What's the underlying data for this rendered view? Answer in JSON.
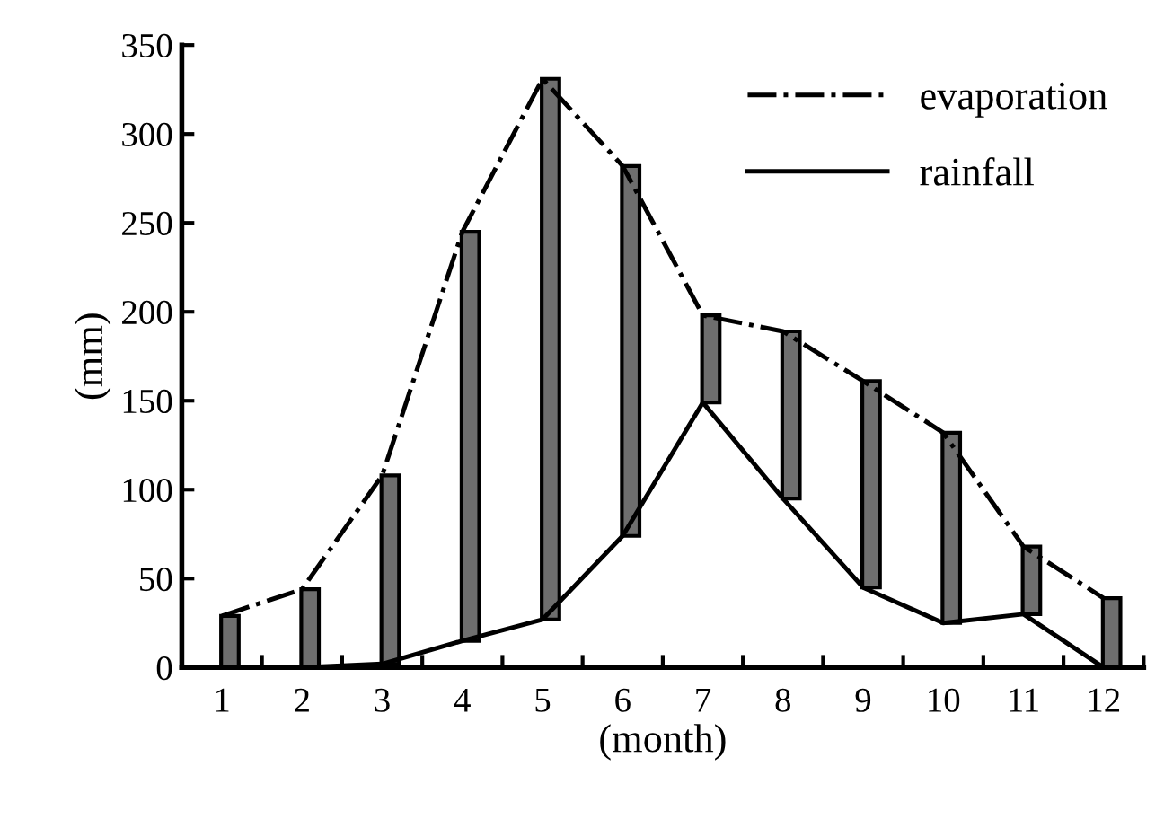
{
  "chart_data": {
    "type": "line",
    "xlabel": "(month)",
    "ylabel": "(mm)",
    "categories": [
      "1",
      "2",
      "3",
      "4",
      "5",
      "6",
      "7",
      "8",
      "9",
      "10",
      "11",
      "12"
    ],
    "series": [
      {
        "type": "bar",
        "color": "#6e6e6e",
        "base": [
          0,
          0,
          2,
          15,
          27,
          74,
          149,
          95,
          45,
          25,
          30,
          0
        ],
        "values": [
          29,
          44,
          106,
          230,
          304,
          208,
          49,
          94,
          116,
          107,
          38,
          39
        ]
      },
      {
        "name": "evaporation",
        "color": "#000000",
        "line_style": "dashdot",
        "values": [
          29,
          44,
          108,
          245,
          331,
          282,
          198,
          189,
          161,
          132,
          68,
          39
        ]
      },
      {
        "name": "rainfall",
        "color": "#000000",
        "line_style": "solid",
        "values": [
          0,
          0,
          2,
          15,
          27,
          74,
          149,
          95,
          45,
          25,
          30,
          0
        ]
      }
    ],
    "ylim": [
      0,
      350
    ],
    "yticks": [
      0,
      50,
      100,
      150,
      200,
      250,
      300,
      350
    ],
    "grid": false,
    "legend": "top right",
    "marker": "none"
  }
}
